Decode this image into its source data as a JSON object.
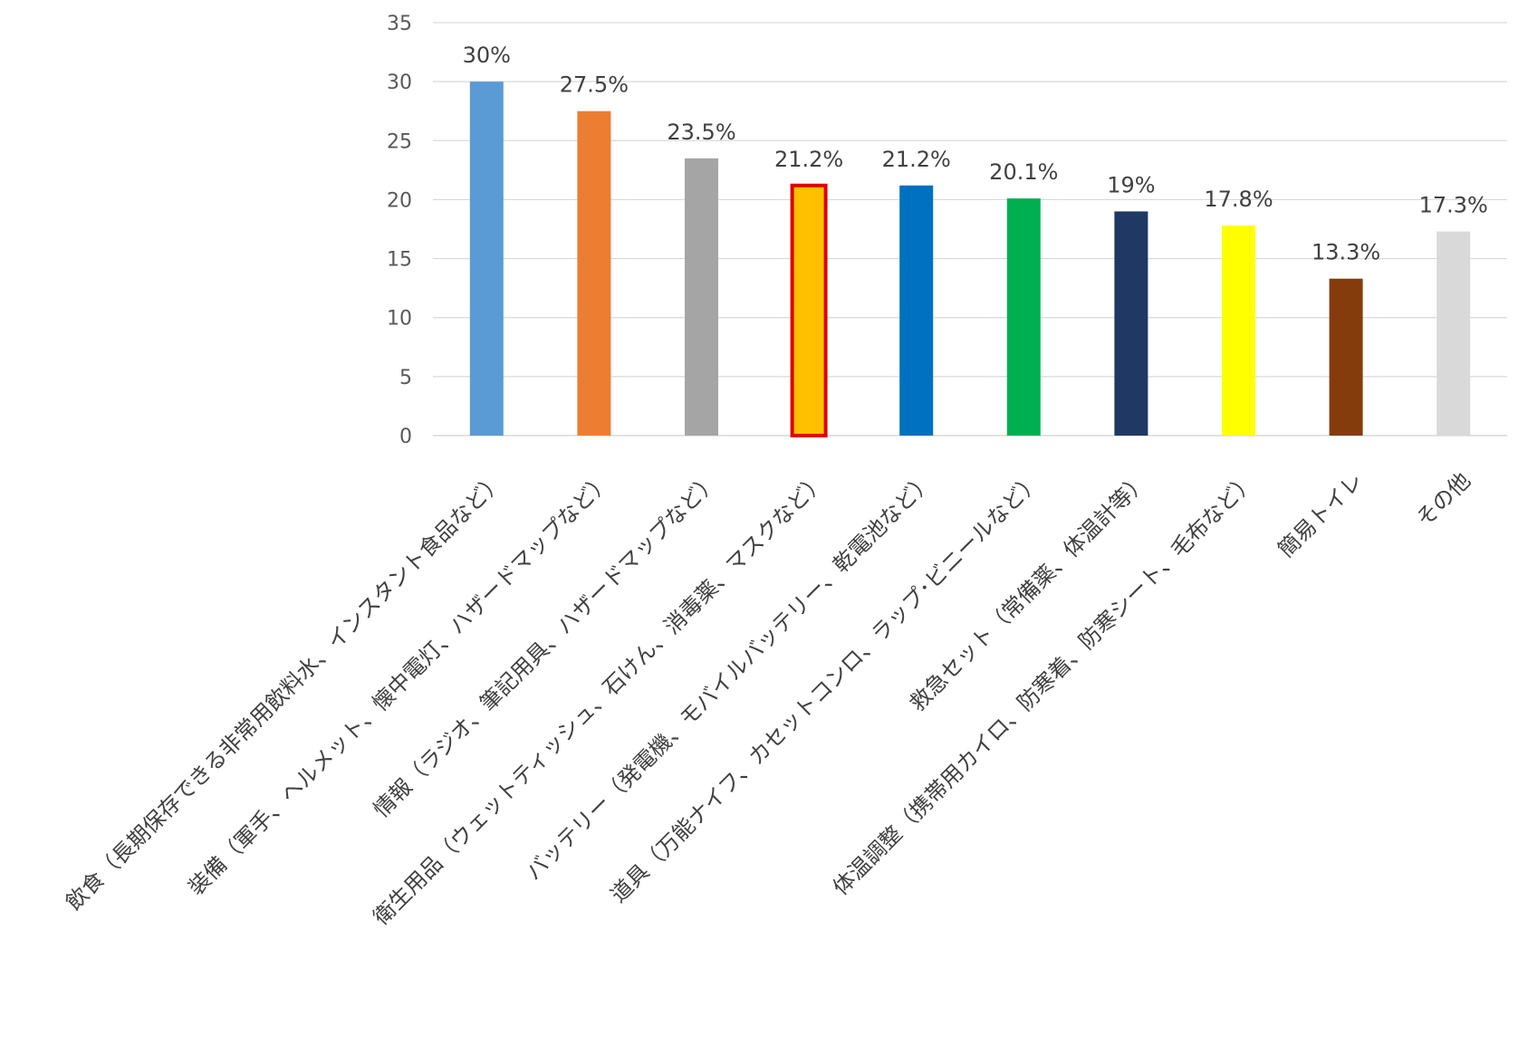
{
  "chart_data": {
    "type": "bar",
    "title": "",
    "xlabel": "",
    "ylabel": "",
    "ylim": [
      0,
      35
    ],
    "yticks": [
      0,
      5,
      10,
      15,
      20,
      25,
      30,
      35
    ],
    "grid": true,
    "legend": "none",
    "categories": [
      "飲食（長期保存できる非常用飲料水、インスタント食品など）",
      "装備（軍手、ヘルメット、懐中電灯、ハザードマップなど）",
      "情報（ラジオ、筆記用具、ハザードマップなど）",
      "衛生用品（ウェットティッシュ、石けん、消毒薬、マスクなど）",
      "バッテリー（発電機、モバイルバッテリー、乾電池など）",
      "道具（万能ナイフ、カセットコンロ、ラップ･ビニールなど）",
      "救急セット（常備薬、体温計等）",
      "体温調整（携帯用カイロ、防寒着、防寒シート、毛布など）",
      "簡易トイレ",
      "その他"
    ],
    "values": [
      30,
      27.5,
      23.5,
      21.2,
      21.2,
      20.1,
      19,
      17.8,
      13.3,
      17.3
    ],
    "data_labels": [
      "30%",
      "27.5%",
      "23.5%",
      "21.2%",
      "21.2%",
      "20.1%",
      "19%",
      "17.8%",
      "13.3%",
      "17.3%"
    ],
    "colors": [
      "#5b9bd5",
      "#ed7d31",
      "#a5a5a5",
      "#ffc000",
      "#0070c0",
      "#00b050",
      "#1f3864",
      "#ffff00",
      "#843c0c",
      "#d9d9d9"
    ],
    "highlight_index": 3,
    "highlight_outline_color": "#e00000"
  }
}
